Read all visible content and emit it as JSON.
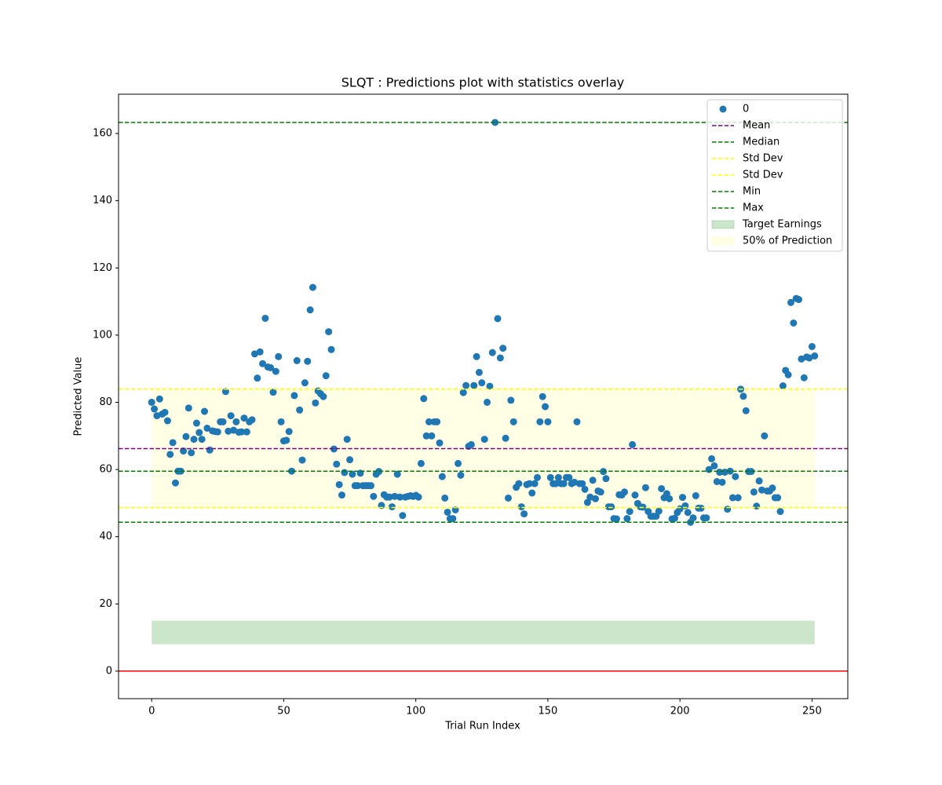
{
  "chart_data": {
    "type": "scatter",
    "title": "SLQT : Predictions plot with statistics overlay",
    "xlabel": "Trial Run Index",
    "ylabel": "Predicted Value",
    "xlim": [
      -12.55,
      263.55
    ],
    "ylim": [
      -8.2,
      171.7
    ],
    "xticks": [
      0,
      50,
      100,
      150,
      200,
      250
    ],
    "yticks": [
      0,
      20,
      40,
      60,
      80,
      100,
      120,
      140,
      160
    ],
    "grid": false,
    "legend_position": "upper right",
    "x": [
      0,
      1,
      2,
      3,
      4,
      5,
      6,
      7,
      8,
      9,
      10,
      11,
      12,
      13,
      14,
      15,
      16,
      17,
      18,
      19,
      20,
      21,
      22,
      23,
      24,
      25,
      26,
      27,
      28,
      29,
      30,
      31,
      32,
      33,
      34,
      35,
      36,
      37,
      38,
      39,
      40,
      41,
      42,
      43,
      44,
      45,
      46,
      47,
      48,
      49,
      50,
      51,
      52,
      53,
      54,
      55,
      56,
      57,
      58,
      59,
      60,
      61,
      62,
      63,
      64,
      65,
      66,
      67,
      68,
      69,
      70,
      71,
      72,
      73,
      74,
      75,
      76,
      77,
      78,
      79,
      80,
      81,
      82,
      83,
      84,
      85,
      86,
      87,
      88,
      89,
      90,
      91,
      92,
      93,
      94,
      95,
      96,
      97,
      98,
      99,
      100,
      101,
      102,
      103,
      104,
      105,
      106,
      107,
      108,
      109,
      110,
      111,
      112,
      113,
      114,
      115,
      116,
      117,
      118,
      119,
      120,
      121,
      122,
      123,
      124,
      125,
      126,
      127,
      128,
      129,
      130,
      131,
      132,
      133,
      134,
      135,
      136,
      137,
      138,
      139,
      140,
      141,
      142,
      143,
      144,
      145,
      146,
      147,
      148,
      149,
      150,
      151,
      152,
      153,
      154,
      155,
      156,
      157,
      158,
      159,
      160,
      161,
      162,
      163,
      164,
      165,
      166,
      167,
      168,
      169,
      170,
      171,
      172,
      173,
      174,
      175,
      176,
      177,
      178,
      179,
      180,
      181,
      182,
      183,
      184,
      185,
      186,
      187,
      188,
      189,
      190,
      191,
      192,
      193,
      194,
      195,
      196,
      197,
      198,
      199,
      200,
      201,
      202,
      203,
      204,
      205,
      206,
      207,
      208,
      209,
      210,
      211,
      212,
      213,
      214,
      215,
      216,
      217,
      218,
      219,
      220,
      221,
      222,
      223,
      224,
      225,
      226,
      227,
      228,
      229,
      230,
      231,
      232,
      233,
      234,
      235,
      236,
      237,
      238,
      239,
      240,
      241,
      242,
      243,
      244,
      245,
      246,
      247,
      248,
      249,
      250,
      251
    ],
    "series": [
      {
        "name": "0",
        "color": "#1f77b4",
        "values": [
          80,
          78,
          76,
          81,
          76.5,
          77,
          74.5,
          64.5,
          68,
          56,
          59.5,
          59.5,
          65.5,
          69.8,
          78.3,
          65,
          69,
          73.8,
          71,
          69,
          77.3,
          72.3,
          65.8,
          71.5,
          71.3,
          71.2,
          74.2,
          74.2,
          83.2,
          71.4,
          76,
          71.7,
          74.2,
          71.1,
          71.2,
          75.3,
          71.2,
          74.2,
          74.8,
          94.4,
          87.2,
          95,
          91.5,
          105,
          90.5,
          90.3,
          83,
          89.2,
          93.6,
          74.2,
          68.5,
          68.7,
          71.3,
          59.5,
          82,
          92.4,
          77.7,
          62.8,
          85.8,
          92.2,
          107.5,
          114.2,
          79.8,
          83.4,
          82.5,
          81.7,
          87.9,
          101,
          95.7,
          66.1,
          61.6,
          55.5,
          52.4,
          59.1,
          69,
          62.9,
          58.6,
          55.2,
          55.2,
          58.9,
          55.2,
          55.2,
          55.2,
          55.2,
          52,
          58.6,
          59.4,
          49.3,
          52.5,
          51.8,
          51.8,
          48.9,
          52,
          58.6,
          51.8,
          46.3,
          51.8,
          52,
          52.2,
          52,
          52.3,
          51.8,
          61.8,
          81.1,
          70,
          74.2,
          70,
          74.2,
          74.2,
          67.9,
          57.9,
          51.5,
          47.3,
          45.4,
          45.4,
          48,
          61.8,
          58.3,
          82.9,
          85,
          66.9,
          67.4,
          85,
          93.6,
          88.9,
          85.8,
          69,
          80,
          84.8,
          94.8,
          163.3,
          104.9,
          93.2,
          96.1,
          69.3,
          51.5,
          80.6,
          74.2,
          54.7,
          55.8,
          48.9,
          46.8,
          55.5,
          55.8,
          53,
          55.8,
          57.6,
          74.2,
          81.7,
          78.7,
          74.2,
          57.6,
          55.8,
          55.8,
          57.6,
          55.8,
          55.8,
          57.6,
          57.6,
          55.8,
          56.2,
          74.2,
          55.8,
          55.8,
          54.1,
          50.2,
          51.8,
          56.8,
          51.3,
          53.6,
          53.3,
          59.4,
          57.3,
          48.9,
          48.9,
          45.4,
          45.3,
          52.5,
          52.4,
          53.3,
          45.4,
          47.5,
          67.4,
          52.4,
          49.9,
          48.9,
          48.8,
          54.6,
          47.5,
          46.1,
          46.1,
          46.1,
          47.6,
          54.3,
          51.6,
          52.8,
          51.3,
          45.3,
          45.5,
          47.2,
          48.3,
          51.7,
          49.2,
          47.2,
          44.3,
          45.6,
          52.2,
          48.5,
          48.5,
          45.6,
          45.6,
          60,
          63.2,
          61.1,
          56.4,
          59.2,
          56.2,
          59.2,
          48.2,
          59.5,
          51.6,
          57.9,
          51.6,
          83.9,
          81.8,
          77.5,
          59.4,
          59.4,
          53.3,
          49.1,
          56.6,
          53.9,
          70,
          53.6,
          53.6,
          54.5,
          51.6,
          51.6,
          47.5,
          84.9,
          89.5,
          88.2,
          109.7,
          103.6,
          110.9,
          110.6,
          92.9,
          87.3,
          93.5,
          93.2,
          96.6,
          93.8
        ]
      }
    ],
    "hlines": [
      {
        "name": "Mean",
        "value": 66.2,
        "color": "purple",
        "style": "dashed"
      },
      {
        "name": "Median",
        "value": 59.5,
        "color": "green",
        "style": "dashed"
      },
      {
        "name": "Std Dev",
        "value": 83.9,
        "color": "yellow",
        "style": "dashed"
      },
      {
        "name": "Std Dev",
        "value": 48.7,
        "color": "yellow",
        "style": "dashed"
      },
      {
        "name": "Min",
        "value": 44.3,
        "color": "green",
        "style": "dashed"
      },
      {
        "name": "Max",
        "value": 163.3,
        "color": "green",
        "style": "dashed"
      },
      {
        "value": 0,
        "color": "red",
        "style": "solid"
      }
    ],
    "bands": [
      {
        "name": "Target Earnings",
        "x": [
          0,
          251
        ],
        "y": [
          8,
          15
        ],
        "color": "green",
        "alpha": 0.2
      },
      {
        "name": "50% of Prediction",
        "x": [
          0,
          251
        ],
        "y": [
          48.7,
          83.9
        ],
        "color": "yellow",
        "alpha": 0.1
      }
    ]
  }
}
